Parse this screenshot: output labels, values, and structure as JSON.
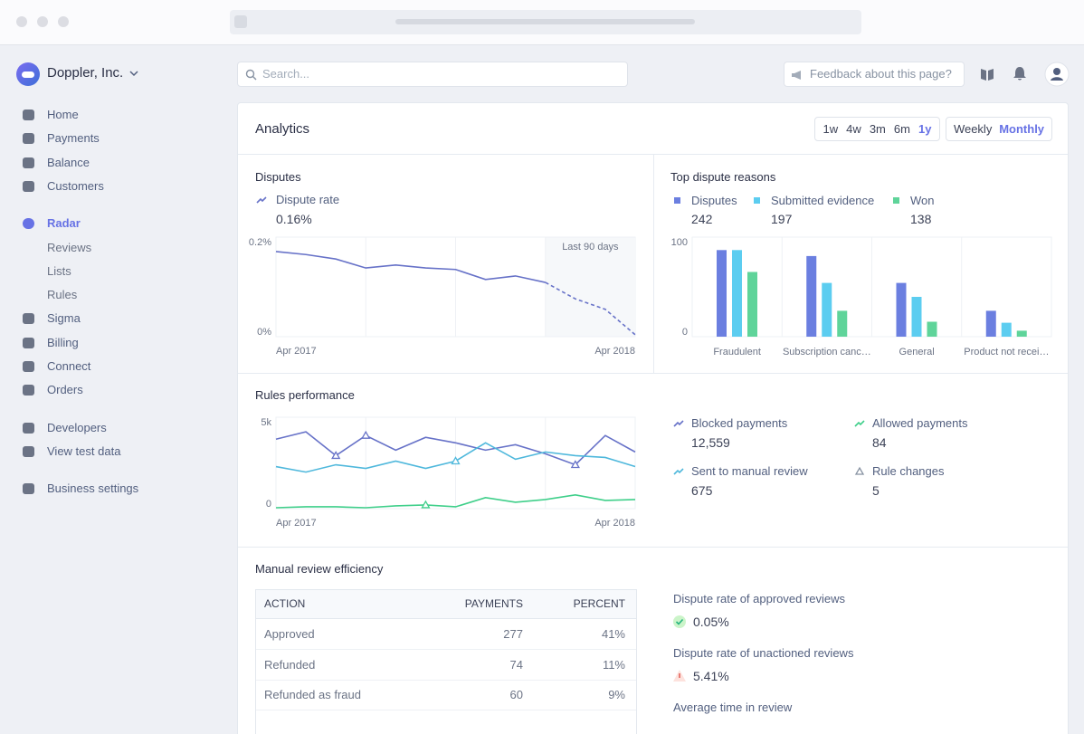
{
  "sidebar": {
    "account": "Doppler, Inc.",
    "active": "Radar",
    "groups": [
      [
        {
          "label": "Home"
        },
        {
          "label": "Payments"
        },
        {
          "label": "Balance"
        },
        {
          "label": "Customers"
        }
      ],
      [
        {
          "label": "Radar"
        },
        {
          "label": "Reviews",
          "sub": true
        },
        {
          "label": "Lists",
          "sub": true
        },
        {
          "label": "Rules",
          "sub": true
        },
        {
          "label": "Sigma"
        },
        {
          "label": "Billing"
        },
        {
          "label": "Connect"
        },
        {
          "label": "Orders"
        }
      ],
      [
        {
          "label": "Developers"
        },
        {
          "label": "View test data"
        }
      ],
      [
        {
          "label": "Business settings"
        }
      ]
    ]
  },
  "topbar": {
    "search_placeholder": "Search...",
    "feedback": "Feedback about this page?"
  },
  "analytics": {
    "title": "Analytics",
    "ranges": [
      "1w",
      "4w",
      "3m",
      "6m",
      "1y"
    ],
    "active_range": 4,
    "intervals": [
      "Weekly",
      "Monthly"
    ],
    "active_interval": 1
  },
  "chart_data": [
    {
      "type": "line",
      "title": "Disputes",
      "annotation": "Last 90 days",
      "x_labels": [
        "Apr 2017",
        "Apr 2018"
      ],
      "ylim": [
        0,
        0.2
      ],
      "yticks": [
        {
          "value": 0,
          "label": "0%"
        },
        {
          "value": 0.2,
          "label": "0.2%"
        }
      ],
      "series": [
        {
          "name": "Dispute rate",
          "summary": "0.16%",
          "color": "#6772c8",
          "values": [
            0.171,
            0.165,
            0.156,
            0.138,
            0.144,
            0.138,
            0.135,
            0.115,
            0.122,
            0.109,
            null,
            null,
            null
          ]
        },
        {
          "color": "#6772c8",
          "dashed": true,
          "values": [
            null,
            null,
            null,
            null,
            null,
            null,
            null,
            null,
            null,
            0.109,
            0.076,
            0.055,
            0.004
          ]
        }
      ]
    },
    {
      "type": "bar",
      "title": "Top dispute reasons",
      "categories": [
        "Fraudulent",
        "Subscription canc…",
        "General",
        "Product not recei…"
      ],
      "ylim": [
        0,
        100
      ],
      "yticks": [
        0,
        100
      ],
      "series": [
        {
          "name": "Disputes",
          "summary": "242",
          "color": "#6b7fe0",
          "values": [
            87,
            81,
            54,
            26
          ]
        },
        {
          "name": "Submitted evidence",
          "summary": "197",
          "color": "#5ccdf0",
          "values": [
            87,
            54,
            40,
            14
          ]
        },
        {
          "name": "Won",
          "summary": "138",
          "color": "#5fd49a",
          "values": [
            65,
            26,
            15,
            6
          ]
        }
      ]
    },
    {
      "type": "line",
      "title": "Rules performance",
      "x_labels": [
        "Apr 2017",
        "Apr 2018"
      ],
      "ylim": [
        0,
        5000
      ],
      "yticks": [
        0,
        {
          "value": 5000,
          "label": "5k"
        }
      ],
      "series": [
        {
          "name": "Blocked payments",
          "summary": "12,559",
          "color": "#6772c8",
          "markers": [
            2,
            3,
            10
          ],
          "values": [
            3800,
            4200,
            2900,
            4000,
            3200,
            3900,
            3600,
            3200,
            3500,
            3000,
            2400,
            4000,
            3100
          ]
        },
        {
          "name": "Sent to manual review",
          "summary": "675",
          "color": "#4fb8dc",
          "markers": [
            6
          ],
          "values": [
            2300,
            2000,
            2400,
            2200,
            2600,
            2200,
            2600,
            3600,
            2700,
            3100,
            2900,
            2800,
            2300
          ]
        },
        {
          "name": "Allowed payments",
          "summary": "84",
          "color": "#3fcf8a",
          "markers": [
            5
          ],
          "values": [
            50,
            100,
            100,
            50,
            150,
            200,
            100,
            600,
            350,
            500,
            750,
            450,
            500
          ]
        }
      ],
      "marker_legend": {
        "name": "Rule changes",
        "summary": "5"
      }
    }
  ],
  "review": {
    "title": "Manual review efficiency",
    "columns": [
      "ACTION",
      "PAYMENTS",
      "PERCENT"
    ],
    "rows": [
      [
        "Approved",
        "277",
        "41%"
      ],
      [
        "Refunded",
        "74",
        "11%"
      ],
      [
        "Refunded as fraud",
        "60",
        "9%"
      ]
    ],
    "stats": [
      {
        "label": "Dispute rate of approved reviews",
        "value": "0.05%",
        "status": "ok"
      },
      {
        "label": "Dispute rate of unactioned reviews",
        "value": "5.41%",
        "status": "warning"
      },
      {
        "label": "Average time in review"
      }
    ]
  }
}
